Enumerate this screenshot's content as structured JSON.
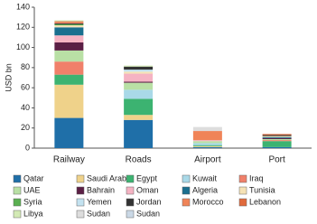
{
  "chart_data": {
    "type": "stacked_bar",
    "y_label": "USD bn",
    "categories": [
      "Railway",
      "Roads",
      "Airport",
      "Port"
    ],
    "ylim": [
      0,
      140
    ],
    "yticks": [
      0,
      20,
      40,
      60,
      80,
      100,
      120,
      140
    ],
    "grid": false,
    "series": [
      {
        "name": "Qatar",
        "color": "#1f6fa8",
        "values": [
          30,
          28,
          1,
          1
        ]
      },
      {
        "name": "Saudi Arabia",
        "color": "#efd28a",
        "values": [
          33,
          5,
          1,
          0
        ]
      },
      {
        "name": "Egypt",
        "color": "#3cb371",
        "values": [
          10,
          16,
          1,
          6
        ]
      },
      {
        "name": "Kuwait",
        "color": "#a9d9e8",
        "values": [
          0,
          9,
          2,
          0
        ]
      },
      {
        "name": "Iraq",
        "color": "#f0806a",
        "values": [
          13,
          0,
          0,
          1
        ]
      },
      {
        "name": "UAE",
        "color": "#b9e0a5",
        "values": [
          11,
          7,
          2,
          1
        ]
      },
      {
        "name": "Bahrain",
        "color": "#5b1f45",
        "values": [
          8,
          1,
          0,
          1
        ]
      },
      {
        "name": "Oman",
        "color": "#f5b3c3",
        "values": [
          7,
          8,
          1,
          0
        ]
      },
      {
        "name": "Algeria",
        "color": "#1a6f8f",
        "values": [
          8,
          0,
          0,
          1
        ]
      },
      {
        "name": "Tunisia",
        "color": "#f5e2b5",
        "values": [
          2,
          2,
          0,
          1
        ]
      },
      {
        "name": "Syria",
        "color": "#5aaf50",
        "values": [
          1,
          0,
          0,
          0
        ]
      },
      {
        "name": "Yemen",
        "color": "#c3e2f0",
        "values": [
          0,
          2,
          0,
          0
        ]
      },
      {
        "name": "Jordan",
        "color": "#333333",
        "values": [
          1,
          3,
          0,
          1
        ]
      },
      {
        "name": "Morocco",
        "color": "#f08458",
        "values": [
          1,
          0,
          9,
          0
        ]
      },
      {
        "name": "Lebanon",
        "color": "#e06a3c",
        "values": [
          1,
          0,
          0,
          1
        ]
      },
      {
        "name": "Libya",
        "color": "#d3eab5",
        "values": [
          1,
          1,
          0,
          0
        ]
      },
      {
        "name": "Sudan",
        "color": "#dddddd",
        "values": [
          0,
          0,
          4,
          0
        ]
      },
      {
        "name": "Sudan",
        "color": "#cad8e6",
        "values": [
          0,
          0,
          0,
          0
        ]
      }
    ]
  }
}
